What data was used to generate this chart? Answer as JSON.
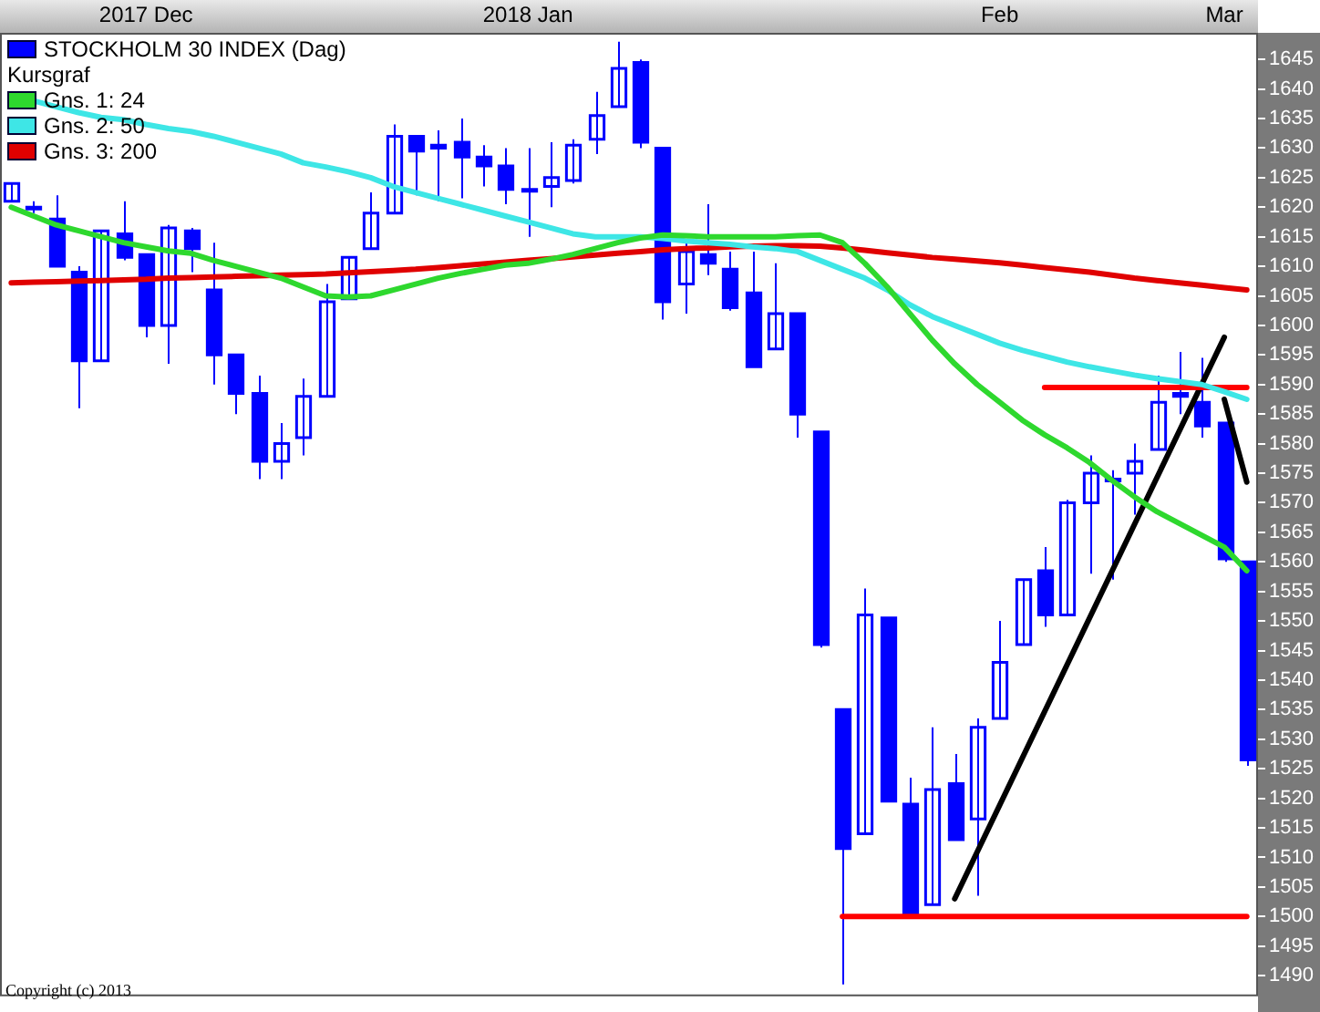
{
  "chart_data": {
    "type": "candlestick",
    "legend": "top left",
    "legend_title": "Kursgraf",
    "marker": "none",
    "categories": [
      null,
      null,
      null,
      null,
      null,
      null,
      "2017 Dec",
      null,
      null,
      null,
      null,
      null,
      null,
      null,
      null,
      null,
      null,
      null,
      null,
      null,
      null,
      null,
      null,
      "2018 Jan",
      null,
      null,
      null,
      null,
      null,
      null,
      null,
      null,
      null,
      null,
      null,
      null,
      null,
      null,
      null,
      null,
      null,
      null,
      null,
      null,
      "Feb",
      null,
      null,
      null,
      null,
      null,
      null,
      null,
      null,
      null,
      "Mar",
      null
    ],
    "ylim": [
      1486.5,
      1649.5
    ],
    "yticks": [
      1490,
      1495,
      1500,
      1505,
      1510,
      1515,
      1520,
      1525,
      1530,
      1535,
      1540,
      1545,
      1550,
      1555,
      1560,
      1565,
      1570,
      1575,
      1580,
      1585,
      1590,
      1595,
      1600,
      1605,
      1610,
      1615,
      1620,
      1625,
      1630,
      1635,
      1640,
      1645
    ],
    "series": [
      {
        "name": "STOCKHOLM 30 INDEX (Dag)",
        "type": "candlestick",
        "color": "#0000ff",
        "ohlc": [
          [
            1621,
            1624,
            1621,
            1624
          ],
          [
            1620,
            1621,
            1619,
            1620
          ],
          [
            1618,
            1622,
            1610,
            1610
          ],
          [
            1609,
            1610,
            1586,
            1594
          ],
          [
            1594,
            1616,
            1594,
            1616
          ],
          [
            1615.5,
            1621,
            1611,
            1611.5
          ],
          [
            1612,
            1612,
            1598,
            1600
          ],
          [
            1600,
            1617,
            1593.5,
            1616.5
          ],
          [
            1616,
            1616.5,
            1609,
            1613
          ],
          [
            1606,
            1614,
            1590,
            1595
          ],
          [
            1595,
            1595,
            1585,
            1588.5
          ],
          [
            1588.5,
            1591.5,
            1574,
            1577
          ],
          [
            1577,
            1583.5,
            1574,
            1580
          ],
          [
            1581,
            1591,
            1578,
            1588
          ],
          [
            1588,
            1607,
            1588,
            1604
          ],
          [
            1604.5,
            1611.5,
            1604.5,
            1611.5
          ],
          [
            1613,
            1622.5,
            1613,
            1619
          ],
          [
            1619,
            1634,
            1619,
            1632
          ],
          [
            1632,
            1632,
            1622,
            1629.5
          ],
          [
            1630.5,
            1633,
            1621,
            1630
          ],
          [
            1631,
            1635,
            1621.5,
            1628.5
          ],
          [
            1628.5,
            1630.5,
            1623.5,
            1627
          ],
          [
            1627,
            1630,
            1620.5,
            1623
          ],
          [
            1623,
            1630,
            1615,
            1623
          ],
          [
            1623.5,
            1631,
            1620,
            1625
          ],
          [
            1624.5,
            1631.5,
            1624,
            1630.5
          ],
          [
            1631.5,
            1639.5,
            1629,
            1635.5
          ],
          [
            1637,
            1648,
            1637,
            1643.5
          ],
          [
            1644.5,
            1645,
            1630,
            1631
          ],
          [
            1630,
            1630,
            1601,
            1604
          ],
          [
            1607,
            1614.5,
            1602,
            1612.5
          ],
          [
            1612,
            1620.5,
            1608.5,
            1610.5
          ],
          [
            1609.5,
            1612.5,
            1602.5,
            1603
          ],
          [
            1605.5,
            1612.5,
            1593,
            1593
          ],
          [
            1596,
            1610.5,
            1596,
            1602
          ],
          [
            1602,
            1602,
            1581,
            1585
          ],
          [
            1582,
            1582,
            1545.5,
            1546
          ],
          [
            1535,
            1535,
            1488.5,
            1511.5
          ],
          [
            1514,
            1555.5,
            1514,
            1551
          ],
          [
            1550.5,
            1550.5,
            1519.5,
            1519.5
          ],
          [
            1519,
            1523.5,
            1500,
            1500.5
          ],
          [
            1502,
            1532,
            1502,
            1521.5
          ],
          [
            1522.5,
            1527.5,
            1513,
            1513
          ],
          [
            1516.5,
            1533.5,
            1503.5,
            1532
          ],
          [
            1533.5,
            1550,
            1533.5,
            1543
          ],
          [
            1546,
            1557,
            1546,
            1557
          ],
          [
            1558.5,
            1562.5,
            1549,
            1551
          ],
          [
            1551,
            1570.5,
            1551,
            1570
          ],
          [
            1570,
            1578,
            1558,
            1575
          ],
          [
            1574,
            1575.5,
            1557,
            1574
          ],
          [
            1575,
            1580,
            1568,
            1577
          ],
          [
            1579,
            1591.5,
            1579,
            1587
          ],
          [
            1588.5,
            1595.5,
            1585,
            1588
          ],
          [
            1587,
            1594.5,
            1581,
            1583
          ],
          [
            1583.5,
            1583.5,
            1560,
            1560.5
          ],
          [
            1560,
            1560,
            1525.5,
            1526.5
          ]
        ]
      },
      {
        "name": "Gns. 1: 24",
        "type": "line",
        "color": "#2ed82e",
        "values": [
          1620,
          1618.5,
          1617,
          1616,
          1615,
          1614,
          1613.3,
          1612.6,
          1612.2,
          1611,
          1610,
          1609,
          1608,
          1606.5,
          1605,
          1604.8,
          1605,
          1606,
          1607,
          1608,
          1608.8,
          1609.5,
          1610.2,
          1610.5,
          1611.2,
          1612,
          1613,
          1614,
          1614.8,
          1615.3,
          1615.2,
          1615,
          1615,
          1615,
          1615,
          1615.2,
          1615.3,
          1614,
          1610.5,
          1606.5,
          1602,
          1597.5,
          1593.5,
          1590,
          1587,
          1584,
          1581.5,
          1579.3,
          1576.8,
          1573.8,
          1571,
          1568.5,
          1566.5,
          1564.5,
          1562.5,
          1558.5
        ]
      },
      {
        "name": "Gns. 2: 50",
        "type": "line",
        "color": "#3ee6e6",
        "values": [
          null,
          1638,
          1637,
          1636,
          1635.2,
          1634.8,
          1634,
          1633.3,
          1632.8,
          1632,
          1631,
          1630,
          1629,
          1627.5,
          1626.8,
          1626,
          1625,
          1623.5,
          1622.5,
          1621.5,
          1620.5,
          1619.5,
          1618.5,
          1617.5,
          1616.5,
          1615.5,
          1615,
          1615,
          1615,
          1614.7,
          1614.3,
          1614,
          1613.7,
          1613.3,
          1613,
          1612.5,
          1611,
          1609.5,
          1608,
          1606,
          1603.5,
          1601.5,
          1600,
          1598.5,
          1597,
          1595.8,
          1594.8,
          1593.8,
          1593,
          1592.3,
          1591.6,
          1591,
          1590.5,
          1590,
          1588.8,
          1587.5
        ]
      },
      {
        "name": "Gns. 3: 200",
        "type": "line",
        "color": "#e00000",
        "values": [
          1607.2,
          1607.3,
          1607.4,
          1607.5,
          1607.6,
          1607.7,
          1607.8,
          1608,
          1608.1,
          1608.2,
          1608.3,
          1608.4,
          1608.5,
          1608.6,
          1608.7,
          1608.9,
          1609.1,
          1609.3,
          1609.5,
          1609.8,
          1610.1,
          1610.4,
          1610.7,
          1611,
          1611.3,
          1611.6,
          1611.9,
          1612.2,
          1612.5,
          1612.8,
          1613,
          1613.1,
          1613.3,
          1613.4,
          1613.5,
          1613.5,
          1613.4,
          1613.1,
          1612.7,
          1612.3,
          1611.9,
          1611.5,
          1611.2,
          1610.9,
          1610.6,
          1610.2,
          1609.8,
          1609.4,
          1609,
          1608.5,
          1608,
          1607.6,
          1607.2,
          1606.8,
          1606.4,
          1606
        ]
      },
      {
        "type": "line",
        "color": "#ff0000",
        "values": [
          null,
          null,
          null,
          null,
          null,
          null,
          null,
          null,
          null,
          null,
          null,
          null,
          null,
          null,
          null,
          null,
          null,
          null,
          null,
          null,
          null,
          null,
          null,
          null,
          null,
          null,
          null,
          null,
          null,
          null,
          null,
          null,
          null,
          null,
          null,
          null,
          null,
          1500,
          1500,
          1500,
          1500,
          1500,
          1500,
          1500,
          1500,
          1500,
          1500,
          1500,
          1500,
          1500,
          1500,
          1500,
          1500,
          1500,
          1500,
          1500
        ]
      },
      {
        "type": "line",
        "color": "#ff0000",
        "values": [
          null,
          null,
          null,
          null,
          null,
          null,
          null,
          null,
          null,
          null,
          null,
          null,
          null,
          null,
          null,
          null,
          null,
          null,
          null,
          null,
          null,
          null,
          null,
          null,
          null,
          null,
          null,
          null,
          null,
          null,
          null,
          null,
          null,
          null,
          null,
          null,
          null,
          null,
          null,
          null,
          null,
          null,
          null,
          null,
          null,
          null,
          1589.5,
          1589.5,
          1589.5,
          1589.5,
          1589.5,
          1589.5,
          1589.5,
          1589.5,
          1589.5,
          1589.5
        ]
      },
      {
        "type": "line",
        "color": "#000000",
        "values": [
          null,
          null,
          null,
          null,
          null,
          null,
          null,
          null,
          null,
          null,
          null,
          null,
          null,
          null,
          null,
          null,
          null,
          null,
          null,
          null,
          null,
          null,
          null,
          null,
          null,
          null,
          null,
          null,
          null,
          null,
          null,
          null,
          null,
          null,
          null,
          null,
          null,
          null,
          null,
          null,
          null,
          null,
          1503,
          null,
          null,
          null,
          null,
          null,
          null,
          null,
          null,
          null,
          null,
          null,
          1598,
          null
        ]
      },
      {
        "type": "line",
        "color": "#000000",
        "values": [
          null,
          null,
          null,
          null,
          null,
          null,
          null,
          null,
          null,
          null,
          null,
          null,
          null,
          null,
          null,
          null,
          null,
          null,
          null,
          null,
          null,
          null,
          null,
          null,
          null,
          null,
          null,
          null,
          null,
          null,
          null,
          null,
          null,
          null,
          null,
          null,
          null,
          null,
          null,
          null,
          null,
          null,
          null,
          null,
          null,
          null,
          null,
          null,
          null,
          null,
          null,
          null,
          null,
          null,
          1587.5,
          1573.5
        ]
      }
    ],
    "annotations": [
      "Copyright (c) 2013"
    ]
  }
}
